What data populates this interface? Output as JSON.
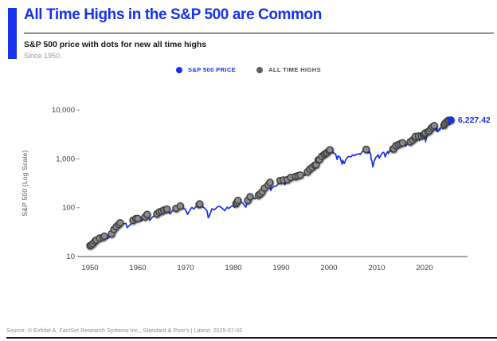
{
  "header": {
    "title": "All Time Highs in the S&P 500 are Common",
    "subtitle": "S&P 500 price with dots for new all time highs",
    "subnote": "Since 1950."
  },
  "theme": {
    "accent_blue": "#1632ec",
    "ath_dot_fill": "#8c8c8c",
    "ath_dot_ring": "#3b3b3b",
    "axis_text": "#3c3c3c",
    "axis_line": "#a6a6a6"
  },
  "legend": [
    {
      "label": "S&P 500 PRICE",
      "dot_color": "#1632ec",
      "text_color": "#1632ec"
    },
    {
      "label": "ALL TIME HIGHS",
      "dot_color": "#5f5f5f",
      "text_color": "#4a4a4a"
    }
  ],
  "footer": {
    "source": "Source: © Exhibit A, FactSet Research Systems Inc., Standard & Poor's | Latest: 2025-07-02"
  },
  "chart_data": {
    "type": "line",
    "title": "All Time Highs in the S&P 500 are Common",
    "xlabel": "",
    "ylabel": "S&P 500 (Log Scale)",
    "y_scale": "log10",
    "x_range": [
      1948.5,
      2029
    ],
    "y_range": [
      10,
      16000
    ],
    "grid": false,
    "legend_position": "top-center",
    "y_ticks": [
      {
        "value": 10000,
        "label": "10,000"
      },
      {
        "value": 1000,
        "label": "1,000"
      },
      {
        "value": 100,
        "label": "100"
      },
      {
        "value": 10,
        "label": "10"
      }
    ],
    "x_ticks": [
      1950,
      1960,
      1970,
      1980,
      1990,
      2000,
      2010,
      2020
    ],
    "latest_value": 6227.42,
    "end_label": "6,227.42",
    "markers_rule": "gray dot at every point setting a new running maximum (new all time high)",
    "series": [
      {
        "name": "S&P 500 PRICE",
        "color": "#1632ec",
        "points": [
          [
            1950,
            16.7
          ],
          [
            1950.25,
            17.3
          ],
          [
            1950.45,
            17.1
          ],
          [
            1950.6,
            18.4
          ],
          [
            1951,
            20.4
          ],
          [
            1951.3,
            21.8
          ],
          [
            1951.55,
            21.1
          ],
          [
            1952,
            23.8
          ],
          [
            1952.35,
            23.3
          ],
          [
            1952.7,
            24.8
          ],
          [
            1953,
            26.2
          ],
          [
            1953.4,
            24.2
          ],
          [
            1953.7,
            23.3
          ],
          [
            1954,
            24.8
          ],
          [
            1954.5,
            29.2
          ],
          [
            1955,
            36
          ],
          [
            1955.5,
            41
          ],
          [
            1956,
            45.5
          ],
          [
            1956.3,
            48.9
          ],
          [
            1956.6,
            46.3
          ],
          [
            1957,
            46.7
          ],
          [
            1957.5,
            47.9
          ],
          [
            1957.8,
            39
          ],
          [
            1958,
            41.1
          ],
          [
            1958.5,
            45.3
          ],
          [
            1959,
            55.2
          ],
          [
            1959.6,
            59.7
          ],
          [
            1960,
            59.9
          ],
          [
            1960.4,
            55.3
          ],
          [
            1960.8,
            53.3
          ],
          [
            1961,
            58.1
          ],
          [
            1961.5,
            64.6
          ],
          [
            1961.95,
            72.6
          ],
          [
            1962.2,
            69.6
          ],
          [
            1962.5,
            54.8
          ],
          [
            1963,
            63.1
          ],
          [
            1963.5,
            69.4
          ],
          [
            1964,
            75
          ],
          [
            1964.5,
            81.7
          ],
          [
            1965,
            84.8
          ],
          [
            1965.45,
            89.3
          ],
          [
            1965.55,
            84.1
          ],
          [
            1966,
            92.4
          ],
          [
            1966.1,
            93.8
          ],
          [
            1966.75,
            74.5
          ],
          [
            1967,
            80.3
          ],
          [
            1967.5,
            91.4
          ],
          [
            1968,
            96.5
          ],
          [
            1968.2,
            89.1
          ],
          [
            1968.9,
            108.4
          ],
          [
            1969,
            103
          ],
          [
            1969.5,
            97.7
          ],
          [
            1970,
            92.1
          ],
          [
            1970.4,
            72.7
          ],
          [
            1971,
            92.2
          ],
          [
            1971.3,
            101
          ],
          [
            1971.8,
            94.2
          ],
          [
            1972,
            102.1
          ],
          [
            1972.5,
            107.1
          ],
          [
            1972.85,
            116.7
          ],
          [
            1972.95,
            119.1
          ],
          [
            1973,
            118.1
          ],
          [
            1973.5,
            104.3
          ],
          [
            1974,
            97.6
          ],
          [
            1974.5,
            86
          ],
          [
            1974.75,
            62.3
          ],
          [
            1975,
            68.6
          ],
          [
            1975.5,
            95.2
          ],
          [
            1976,
            90.2
          ],
          [
            1976.7,
            104.3
          ],
          [
            1977,
            107.5
          ],
          [
            1977.5,
            100.5
          ],
          [
            1978.2,
            86.9
          ],
          [
            1978.7,
            102.5
          ],
          [
            1979,
            96.1
          ],
          [
            1979.7,
            108.6
          ],
          [
            1980,
            107.9
          ],
          [
            1980.25,
            102.1
          ],
          [
            1980.55,
            121.4
          ],
          [
            1980.75,
            129.2
          ],
          [
            1980.95,
            140.5
          ],
          [
            1981,
            135.8
          ],
          [
            1981.6,
            130.9
          ],
          [
            1982,
            122.6
          ],
          [
            1982.6,
            102.4
          ],
          [
            1983,
            140.6
          ],
          [
            1983.5,
            168.1
          ],
          [
            1984,
            164.9
          ],
          [
            1984.55,
            150.9
          ],
          [
            1985,
            167.2
          ],
          [
            1985.25,
            180.7
          ],
          [
            1985.6,
            191.9
          ],
          [
            1986,
            211.3
          ],
          [
            1986.5,
            252
          ],
          [
            1986.7,
            236.1
          ],
          [
            1987,
            242.2
          ],
          [
            1987.3,
            291.7
          ],
          [
            1987.65,
            329.8
          ],
          [
            1987.82,
            224.8
          ],
          [
            1988,
            247.1
          ],
          [
            1988.5,
            273.5
          ],
          [
            1989,
            277.7
          ],
          [
            1989.5,
            321.9
          ],
          [
            1989.78,
            359.8
          ],
          [
            1990,
            353.4
          ],
          [
            1990.45,
            368
          ],
          [
            1990.78,
            295.5
          ],
          [
            1991,
            330.2
          ],
          [
            1991.3,
            375.2
          ],
          [
            1991.6,
            371.2
          ],
          [
            1992,
            417.1
          ],
          [
            1992.35,
            403.7
          ],
          [
            1992.7,
            414
          ],
          [
            1993,
            435.7
          ],
          [
            1993.5,
            450.5
          ],
          [
            1994,
            466.5
          ],
          [
            1994.3,
            445.8
          ],
          [
            1994.7,
            454.3
          ],
          [
            1995,
            459.3
          ],
          [
            1995.5,
            544.8
          ],
          [
            1996,
            615.9
          ],
          [
            1996.5,
            670.6
          ],
          [
            1997,
            740.7
          ],
          [
            1997.3,
            757.1
          ],
          [
            1997.45,
            737.6
          ],
          [
            1997.75,
            947
          ],
          [
            1998,
            970.4
          ],
          [
            1998.5,
            1133.8
          ],
          [
            1998.67,
            957.3
          ],
          [
            1999,
            1229.2
          ],
          [
            1999.3,
            1286.4
          ],
          [
            1999.6,
            1356.9
          ],
          [
            1999.78,
            1282.7
          ],
          [
            2000,
            1469.3
          ],
          [
            2000.2,
            1527.5
          ],
          [
            2000.45,
            1420.6
          ],
          [
            2000.65,
            1491.6
          ],
          [
            2000.9,
            1315
          ],
          [
            2001,
            1320.3
          ],
          [
            2001.4,
            1249.5
          ],
          [
            2001.72,
            965.8
          ],
          [
            2001.9,
            1139.5
          ],
          [
            2002,
            1148.1
          ],
          [
            2002.3,
            1076.9
          ],
          [
            2002.75,
            776.8
          ],
          [
            2002.9,
            936.3
          ],
          [
            2003,
            879.8
          ],
          [
            2003.2,
            800.7
          ],
          [
            2003.6,
            990.3
          ],
          [
            2004,
            1111.9
          ],
          [
            2004.35,
            1107.3
          ],
          [
            2004.6,
            1104.2
          ],
          [
            2005,
            1211.9
          ],
          [
            2005.3,
            1156.9
          ],
          [
            2005.7,
            1234.2
          ],
          [
            2006,
            1248.3
          ],
          [
            2006.45,
            1270.1
          ],
          [
            2006.55,
            1223.7
          ],
          [
            2007,
            1418.3
          ],
          [
            2007.4,
            1503.4
          ],
          [
            2007.6,
            1433.1
          ],
          [
            2007.78,
            1565.2
          ],
          [
            2008,
            1468.4
          ],
          [
            2008.2,
            1322.7
          ],
          [
            2008.4,
            1426.6
          ],
          [
            2008.7,
            1282.8
          ],
          [
            2008.85,
            968.8
          ],
          [
            2009,
            903.3
          ],
          [
            2009.18,
            676.5
          ],
          [
            2009.5,
            919.3
          ],
          [
            2009.8,
            1071.7
          ],
          [
            2010,
            1115.1
          ],
          [
            2010.3,
            1217.3
          ],
          [
            2010.55,
            1030.7
          ],
          [
            2011,
            1257.6
          ],
          [
            2011.35,
            1363.6
          ],
          [
            2011.6,
            1292.3
          ],
          [
            2011.75,
            1099.2
          ],
          [
            2012,
            1257.6
          ],
          [
            2012.3,
            1419
          ],
          [
            2012.45,
            1278
          ],
          [
            2012.7,
            1465.8
          ],
          [
            2013,
            1426.2
          ],
          [
            2013.4,
            1597.6
          ],
          [
            2013.55,
            1606.3
          ],
          [
            2014,
            1848.4
          ],
          [
            2014.5,
            1960.2
          ],
          [
            2015,
            2058.9
          ],
          [
            2015.4,
            2130.8
          ],
          [
            2015.68,
            1867.6
          ],
          [
            2015.85,
            2099.9
          ],
          [
            2016.1,
            1829.1
          ],
          [
            2016.5,
            2098.9
          ],
          [
            2017,
            2238.8
          ],
          [
            2017.5,
            2423.4
          ],
          [
            2018,
            2673.6
          ],
          [
            2018.07,
            2872.9
          ],
          [
            2018.25,
            2581
          ],
          [
            2018.72,
            2930.8
          ],
          [
            2018.95,
            2351.1
          ],
          [
            2019,
            2506.9
          ],
          [
            2019.33,
            2945.8
          ],
          [
            2019.45,
            2752.1
          ],
          [
            2019.8,
            3066.9
          ],
          [
            2020,
            3230.8
          ],
          [
            2020.12,
            3386.2
          ],
          [
            2020.23,
            2237.4
          ],
          [
            2020.45,
            3044.3
          ],
          [
            2020.68,
            3580.8
          ],
          [
            2020.76,
            3269
          ],
          [
            2021,
            3756.1
          ],
          [
            2021.35,
            4181.2
          ],
          [
            2021.7,
            4522.7
          ],
          [
            2021.76,
            4357
          ],
          [
            2022.03,
            4796.6
          ],
          [
            2022.17,
            4170.7
          ],
          [
            2022.3,
            4582.6
          ],
          [
            2022.45,
            3666.8
          ],
          [
            2022.6,
            4305.2
          ],
          [
            2022.78,
            3577
          ],
          [
            2023,
            3839.5
          ],
          [
            2023.1,
            4179.8
          ],
          [
            2023.2,
            3855.8
          ],
          [
            2023.55,
            4588
          ],
          [
            2023.83,
            4117.4
          ],
          [
            2024,
            4769.8
          ],
          [
            2024.07,
            4927.9
          ],
          [
            2024.25,
            5254.4
          ],
          [
            2024.32,
            5035.7
          ],
          [
            2024.55,
            5667.2
          ],
          [
            2024.62,
            5346.6
          ],
          [
            2024.92,
            6090.3
          ],
          [
            2025,
            5881.6
          ],
          [
            2025.12,
            6144.2
          ],
          [
            2025.28,
            4982.8
          ],
          [
            2025.5,
            6227.42
          ]
        ]
      }
    ]
  }
}
